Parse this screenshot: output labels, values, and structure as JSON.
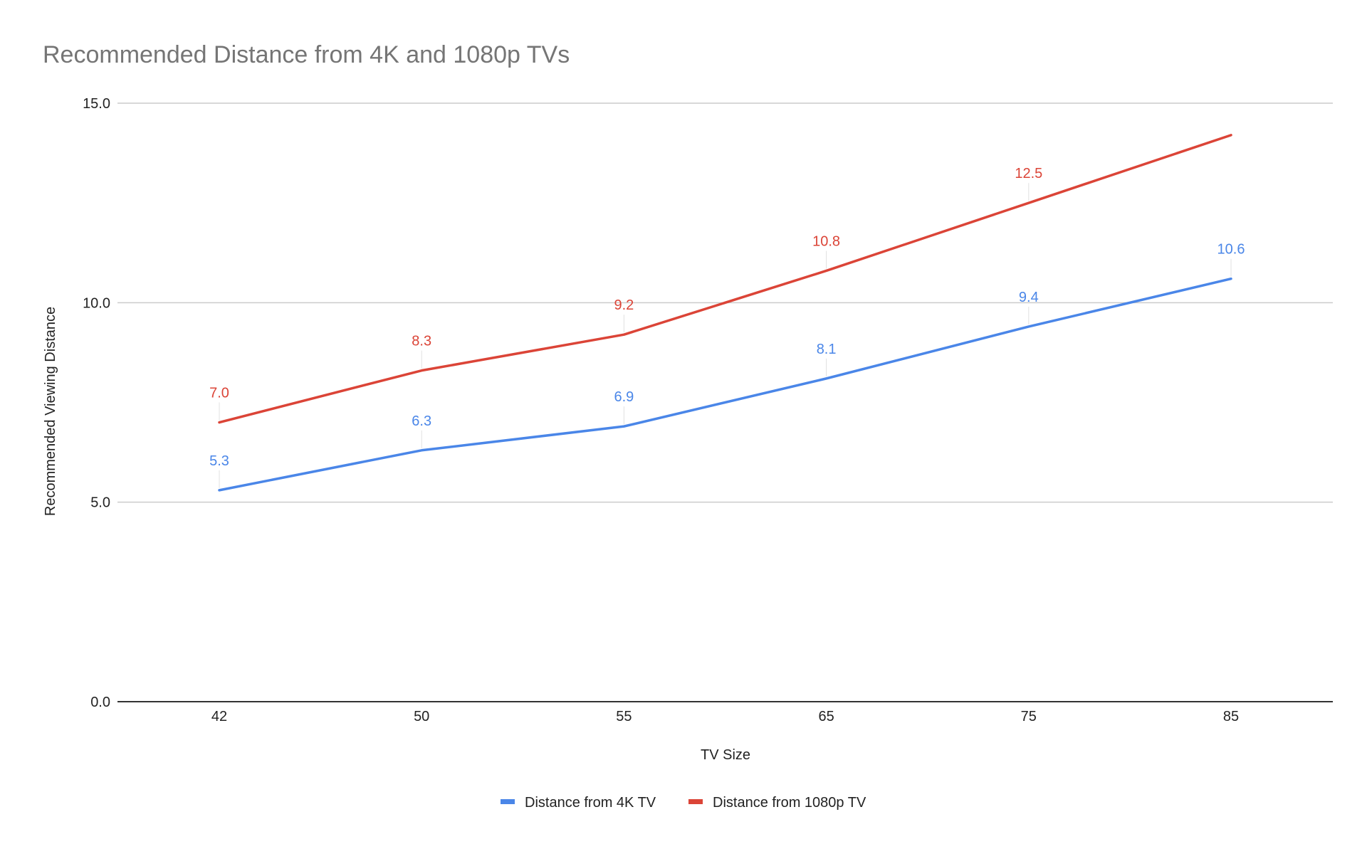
{
  "chart_data": {
    "type": "line",
    "title": "Recommended Distance from 4K and 1080p TVs",
    "xlabel": "TV Size",
    "ylabel": "Recommended Viewing Distance",
    "categories": [
      "42",
      "50",
      "55",
      "65",
      "75",
      "85"
    ],
    "ylim": [
      0,
      15
    ],
    "yticks": [
      "0.0",
      "5.0",
      "10.0",
      "15.0"
    ],
    "ytick_values": [
      0,
      5,
      10,
      15
    ],
    "grid": true,
    "legend_position": "bottom",
    "series": [
      {
        "name": "Distance from 4K TV",
        "color": "#4a86e8",
        "values": [
          5.3,
          6.3,
          6.9,
          8.1,
          9.4,
          10.6
        ],
        "labels": [
          "5.3",
          "6.3",
          "6.9",
          "8.1",
          "9.4",
          "10.6"
        ]
      },
      {
        "name": "Distance from 1080p TV",
        "color": "#db4437",
        "values": [
          7.0,
          8.3,
          9.2,
          10.8,
          12.5,
          14.2
        ],
        "labels": [
          "7.0",
          "8.3",
          "9.2",
          "10.8",
          "12.5",
          ""
        ]
      }
    ]
  }
}
